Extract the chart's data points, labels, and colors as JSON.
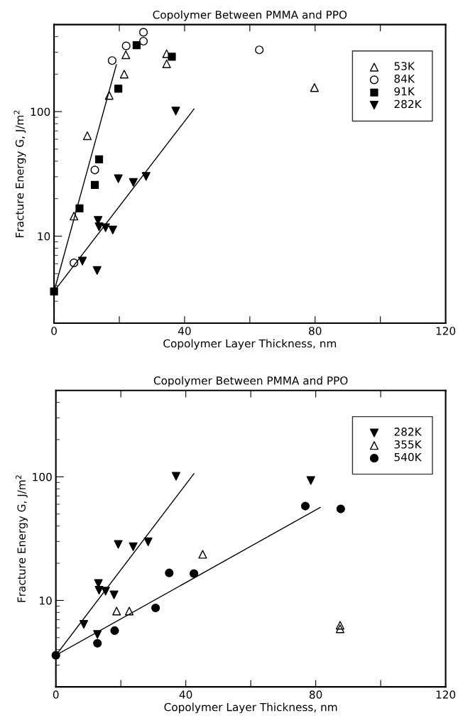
{
  "chart_data": [
    {
      "type": "scatter",
      "title": "Copolymer Between PMMA and PPO",
      "xlabel": "Copolymer Layer Thickness, nm",
      "ylabel": "Fracture Energy G, J/m$^{2}$",
      "log": "y",
      "xlim": [
        0,
        120
      ],
      "ylim": [
        2,
        500
      ],
      "xticks": [
        0,
        {
          "value": 20,
          "label": null
        },
        40,
        {
          "value": 60,
          "label": null
        },
        80,
        {
          "value": 100,
          "label": null
        },
        120
      ],
      "yticks": [
        10,
        100
      ],
      "grid": false,
      "legend": "top right",
      "series": [
        {
          "name": "53K",
          "color": "#000000",
          "marker": "triangle_open",
          "x": [
            6.1,
            10.2,
            16.9,
            21.5,
            22.0,
            34.5,
            34.5,
            79.8
          ],
          "values": [
            14.5,
            64,
            135,
            200,
            286,
            292,
            242,
            156
          ]
        },
        {
          "name": "84K",
          "color": "#000000",
          "marker": "circle_open",
          "x": [
            6.1,
            12.5,
            17.8,
            22.1,
            27.4,
            27.4,
            62.9
          ],
          "values": [
            6.1,
            34,
            257,
            337,
            368,
            434,
            313
          ]
        },
        {
          "name": "91K",
          "color": "#000000",
          "marker": "square",
          "x": [
            0,
            7.8,
            12.5,
            13.8,
            19.7,
            25.3,
            36.1
          ],
          "values": [
            3.6,
            16.7,
            25.8,
            41.4,
            153,
            342,
            276
          ]
        },
        {
          "name": "282K",
          "color": "#000000",
          "marker": "triangle_down",
          "x": [
            8.7,
            13.2,
            13.5,
            13.8,
            15.8,
            18.0,
            19.7,
            24.3,
            28.2,
            37.3
          ],
          "values": [
            6.3,
            5.3,
            13.4,
            11.9,
            11.7,
            11.2,
            28.9,
            27,
            30.2,
            101
          ]
        },
        {
          "type": "line",
          "color": "#000000",
          "marker": "none",
          "x": [
            0,
            19.1
          ],
          "values": [
            3.6,
            238
          ]
        },
        {
          "type": "line",
          "color": "#000000",
          "marker": "none",
          "x": [
            0,
            42.9
          ],
          "values": [
            3.6,
            105
          ]
        }
      ]
    },
    {
      "type": "scatter",
      "title": "Copolymer Between PMMA and PPO",
      "xlabel": "Copolymer Layer Thickness, nm",
      "ylabel": "Fracture Energy G, J/m$^{2}$",
      "log": "y",
      "xlim": [
        0,
        120
      ],
      "ylim": [
        2,
        500
      ],
      "xticks": [
        0,
        {
          "value": 20,
          "label": null
        },
        40,
        {
          "value": 60,
          "label": null
        },
        80,
        {
          "value": 100,
          "label": null
        },
        120
      ],
      "yticks": [
        10,
        100
      ],
      "grid": false,
      "legend": "top right",
      "series": [
        {
          "name": "282K",
          "color": "#000000",
          "marker": "triangle_down",
          "x": [
            8.6,
            12.8,
            13.1,
            13.3,
            15.3,
            17.9,
            19.2,
            23.8,
            28.4,
            37.0,
            78.5
          ],
          "values": [
            6.4,
            5.3,
            13.7,
            12.1,
            11.9,
            11.1,
            28.4,
            27.2,
            29.8,
            101,
            93.5
          ]
        },
        {
          "name": "355K",
          "color": "#000000",
          "marker": "triangle_open",
          "x": [
            18.7,
            22.6,
            45.2,
            87.5,
            87.5
          ],
          "values": [
            8.2,
            8.2,
            23.6,
            6.3,
            5.9
          ]
        },
        {
          "name": "540K",
          "color": "#000000",
          "marker": "circle",
          "x": [
            0,
            12.8,
            18.1,
            30.7,
            34.9,
            42.5,
            76.8,
            87.7
          ],
          "values": [
            3.6,
            4.5,
            5.7,
            8.7,
            16.7,
            16.5,
            58,
            55
          ]
        },
        {
          "type": "line",
          "color": "#000000",
          "marker": "none",
          "x": [
            0,
            42.5
          ],
          "values": [
            3.6,
            106
          ]
        },
        {
          "type": "line",
          "color": "#000000",
          "marker": "none",
          "x": [
            0,
            81.4
          ],
          "values": [
            3.6,
            56.6
          ]
        }
      ]
    }
  ]
}
